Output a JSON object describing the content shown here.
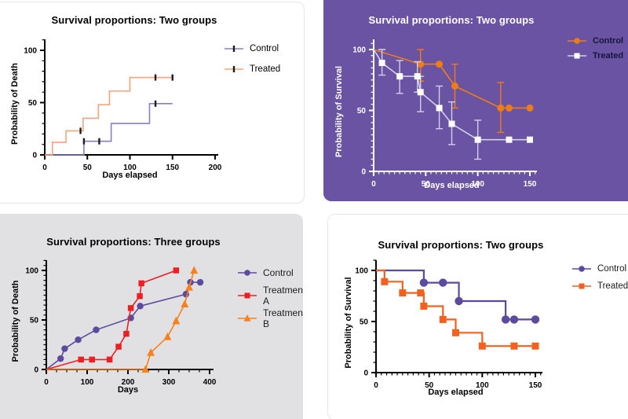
{
  "page": {
    "background": "#ffffff"
  },
  "chart_data": [
    {
      "type": "step",
      "title": "Survival proportions: Two groups",
      "xlabel": "Days elapsed",
      "ylabel": "Probability of Death",
      "xlim": [
        0,
        200
      ],
      "ylim": [
        0,
        100
      ],
      "xticks": [
        0,
        50,
        100,
        150,
        200
      ],
      "yticks": [
        0,
        50,
        100
      ],
      "x_minor": 0,
      "y_minor": 10,
      "grid": false,
      "legend_position": "right",
      "colors": {
        "bg": "#ffffff",
        "border": "#e6e6e8",
        "axis": "#000000",
        "text": "#000000",
        "title": "#000000",
        "censor": "#1c1c1c"
      },
      "series": [
        {
          "name": "Control",
          "color": "#8c7ec6",
          "marker": "censor",
          "path": [
            [
              0,
              0
            ],
            [
              46,
              0
            ],
            [
              46,
              13
            ],
            [
              78,
              13
            ],
            [
              78,
              30
            ],
            [
              123,
              30
            ],
            [
              123,
              49
            ],
            [
              150,
              49
            ]
          ],
          "censors": [
            [
              46,
              13
            ],
            [
              64,
              13
            ],
            [
              130,
              49
            ]
          ]
        },
        {
          "name": "Treated",
          "color": "#f5a479",
          "marker": "censor",
          "path": [
            [
              0,
              0
            ],
            [
              9,
              0
            ],
            [
              9,
              12
            ],
            [
              25,
              12
            ],
            [
              25,
              23
            ],
            [
              45,
              23
            ],
            [
              45,
              35
            ],
            [
              63,
              35
            ],
            [
              63,
              48
            ],
            [
              76,
              48
            ],
            [
              76,
              61
            ],
            [
              100,
              61
            ],
            [
              100,
              74
            ],
            [
              150,
              74
            ]
          ],
          "censors": [
            [
              42,
              23
            ],
            [
              130,
              74
            ],
            [
              150,
              74
            ]
          ]
        }
      ]
    },
    {
      "type": "line",
      "title": "Survival proportions: Two groups",
      "xlabel": "Days elapsed",
      "ylabel": "Probability of Survival",
      "xlim": [
        0,
        150
      ],
      "ylim": [
        0,
        100
      ],
      "xticks": [
        0,
        50,
        100,
        150
      ],
      "yticks": [
        0,
        50,
        100
      ],
      "x_minor": 5,
      "y_minor": 5,
      "grid": false,
      "legend_position": "top-right",
      "colors": {
        "bg": "#6953a2",
        "axis": "#ffffff",
        "text": "#ffffff",
        "title": "#ffffff",
        "legend_text": "#16163c"
      },
      "series": [
        {
          "name": "Control",
          "color": "#ee7d17",
          "marker": "circle",
          "marker_fill": "#ee7d17",
          "path": [
            [
              0,
              100
            ],
            [
              45,
              88
            ],
            [
              63,
              88
            ],
            [
              78,
              70
            ],
            [
              122,
              52
            ],
            [
              130,
              52
            ],
            [
              150,
              52
            ]
          ],
          "markers_at": [
            [
              45,
              88
            ],
            [
              63,
              88
            ],
            [
              78,
              70
            ],
            [
              122,
              52
            ],
            [
              130,
              52
            ],
            [
              150,
              52
            ]
          ],
          "error_bars": [
            [
              45,
              74,
              100
            ],
            [
              78,
              52,
              88
            ],
            [
              122,
              32,
              73
            ]
          ]
        },
        {
          "name": "Treated",
          "color": "#d5cfea",
          "marker": "square",
          "marker_fill": "#ffffff",
          "path": [
            [
              0,
              100
            ],
            [
              8,
              89
            ],
            [
              25,
              78
            ],
            [
              42,
              78
            ],
            [
              45,
              65
            ],
            [
              63,
              52
            ],
            [
              75,
              39
            ],
            [
              100,
              26
            ],
            [
              130,
              26
            ],
            [
              150,
              26
            ]
          ],
          "markers_at": [
            [
              8,
              89
            ],
            [
              25,
              78
            ],
            [
              42,
              78
            ],
            [
              45,
              65
            ],
            [
              63,
              52
            ],
            [
              75,
              39
            ],
            [
              100,
              26
            ],
            [
              130,
              26
            ],
            [
              150,
              26
            ]
          ],
          "error_bars": [
            [
              8,
              79,
              100
            ],
            [
              25,
              64,
              91
            ],
            [
              42,
              65,
              90
            ],
            [
              45,
              49,
              78
            ],
            [
              63,
              35,
              70
            ],
            [
              75,
              22,
              57
            ],
            [
              100,
              10,
              42
            ]
          ]
        }
      ]
    },
    {
      "type": "line",
      "title": "Survival proportions: Three groups",
      "xlabel": "Days",
      "ylabel": "Probability of Death",
      "xlim": [
        0,
        400
      ],
      "ylim": [
        0,
        100
      ],
      "xticks": [
        0,
        100,
        200,
        300,
        400
      ],
      "yticks": [
        0,
        50,
        100
      ],
      "x_minor": 25,
      "y_minor": 5,
      "grid": false,
      "legend_position": "right",
      "colors": {
        "bg": "#e1e1e3",
        "axis": "#000000",
        "text": "#000000",
        "title": "#000000",
        "legend_text": "#1c1c1c"
      },
      "series": [
        {
          "name": "Control",
          "color": "#5c4a9f",
          "marker": "circle",
          "marker_fill": "#5c4a9f",
          "path": [
            [
              0,
              0
            ],
            [
              35,
              11
            ],
            [
              45,
              21
            ],
            [
              78,
              30
            ],
            [
              122,
              40
            ],
            [
              207,
              52
            ],
            [
              230,
              64
            ],
            [
              342,
              76
            ],
            [
              353,
              88
            ],
            [
              377,
              88
            ]
          ],
          "markers_at": [
            [
              35,
              11
            ],
            [
              45,
              21
            ],
            [
              78,
              30
            ],
            [
              122,
              40
            ],
            [
              207,
              52
            ],
            [
              230,
              64
            ],
            [
              342,
              76
            ],
            [
              353,
              88
            ],
            [
              377,
              88
            ]
          ]
        },
        {
          "name": "Treatment A",
          "color": "#ec2024",
          "marker": "square",
          "marker_fill": "#ec2024",
          "path": [
            [
              0,
              0
            ],
            [
              85,
              10
            ],
            [
              112,
              10
            ],
            [
              155,
              10
            ],
            [
              177,
              23
            ],
            [
              196,
              36
            ],
            [
              207,
              62
            ],
            [
              229,
              74
            ],
            [
              233,
              87
            ],
            [
              318,
              100
            ]
          ],
          "markers_at": [
            [
              85,
              10
            ],
            [
              112,
              10
            ],
            [
              155,
              10
            ],
            [
              177,
              23
            ],
            [
              196,
              36
            ],
            [
              207,
              62
            ],
            [
              229,
              74
            ],
            [
              233,
              87
            ],
            [
              318,
              100
            ]
          ]
        },
        {
          "name": "Treatment B",
          "color": "#f6821f",
          "marker": "triangle",
          "marker_fill": "#f6821f",
          "path": [
            [
              0,
              0
            ],
            [
              243,
              0
            ],
            [
              256,
              17
            ],
            [
              297,
              33
            ],
            [
              318,
              49
            ],
            [
              339,
              66
            ],
            [
              350,
              83
            ],
            [
              362,
              100
            ]
          ],
          "markers_at": [
            [
              243,
              0
            ],
            [
              256,
              17
            ],
            [
              297,
              33
            ],
            [
              318,
              49
            ],
            [
              339,
              66
            ],
            [
              350,
              83
            ],
            [
              362,
              100
            ]
          ]
        }
      ]
    },
    {
      "type": "step",
      "title": "Survival proportions: Two groups",
      "xlabel": "Days elapsed",
      "ylabel": "Probability of Survival",
      "xlim": [
        0,
        150
      ],
      "ylim": [
        0,
        100
      ],
      "xticks": [
        0,
        50,
        100,
        150
      ],
      "yticks": [
        0,
        50,
        100
      ],
      "x_minor": 5,
      "y_minor": 10,
      "grid": false,
      "legend_position": "right",
      "colors": {
        "bg": "#ffffff",
        "border": "#e6e6e8",
        "axis": "#000000",
        "text": "#000000",
        "title": "#000000",
        "legend_text": "#1c1c1c"
      },
      "series": [
        {
          "name": "Control",
          "color": "#5c4a9f",
          "marker": "circle",
          "marker_fill": "#5c4a9f",
          "path": [
            [
              0,
              100
            ],
            [
              45,
              100
            ],
            [
              45,
              88
            ],
            [
              78,
              88
            ],
            [
              78,
              70
            ],
            [
              122,
              70
            ],
            [
              122,
              52
            ],
            [
              150,
              52
            ]
          ],
          "markers_at": [
            [
              45,
              88
            ],
            [
              63,
              88
            ],
            [
              78,
              70
            ],
            [
              122,
              52
            ],
            [
              130,
              52
            ],
            [
              150,
              52
            ]
          ]
        },
        {
          "name": "Treated",
          "color": "#f4601e",
          "marker": "square",
          "marker_fill": "#f4601e",
          "path": [
            [
              0,
              100
            ],
            [
              8,
              100
            ],
            [
              8,
              89
            ],
            [
              25,
              89
            ],
            [
              25,
              78
            ],
            [
              45,
              78
            ],
            [
              45,
              65
            ],
            [
              63,
              65
            ],
            [
              63,
              52
            ],
            [
              75,
              52
            ],
            [
              75,
              39
            ],
            [
              100,
              39
            ],
            [
              100,
              26
            ],
            [
              150,
              26
            ]
          ],
          "markers_at": [
            [
              8,
              89
            ],
            [
              25,
              78
            ],
            [
              42,
              78
            ],
            [
              45,
              65
            ],
            [
              63,
              52
            ],
            [
              75,
              39
            ],
            [
              100,
              26
            ],
            [
              130,
              26
            ],
            [
              150,
              26
            ]
          ]
        }
      ]
    }
  ]
}
